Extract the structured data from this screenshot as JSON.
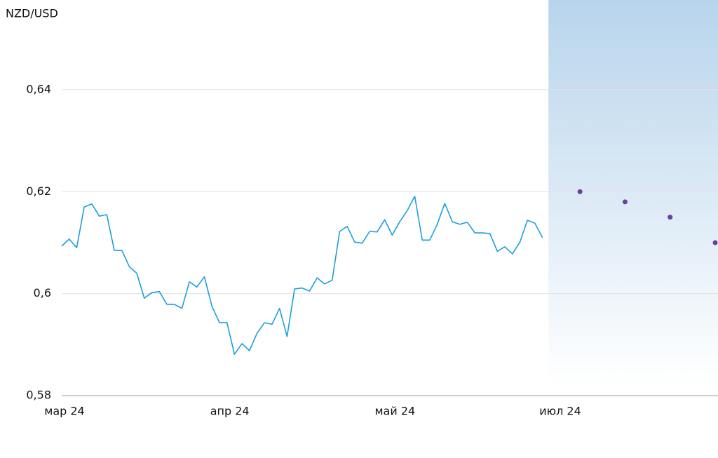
{
  "chart_data": {
    "type": "line",
    "title": "NZD/USD",
    "categories": [
      "мар 24",
      null,
      null,
      null,
      null,
      null,
      null,
      null,
      null,
      null,
      null,
      null,
      null,
      null,
      null,
      null,
      null,
      null,
      null,
      null,
      null,
      null,
      "апр 24",
      null,
      null,
      null,
      null,
      null,
      null,
      null,
      null,
      null,
      null,
      null,
      null,
      null,
      null,
      null,
      null,
      null,
      null,
      null,
      null,
      null,
      "май 24",
      null,
      null,
      null,
      null,
      null,
      null,
      null,
      null,
      null,
      null,
      null,
      null,
      null,
      null,
      null,
      null,
      null,
      null,
      null,
      null,
      null,
      "июл 24",
      null,
      null,
      null,
      null,
      null,
      null,
      null,
      null,
      null,
      null,
      null,
      null,
      null,
      null,
      null,
      null,
      null,
      null,
      null,
      null,
      null
    ],
    "series": [
      {
        "color": "#1a9fdc",
        "style": "line",
        "values": [
          0.6093,
          0.6107,
          0.609,
          0.617,
          0.6176,
          0.6152,
          0.6155,
          0.6085,
          0.6085,
          0.6053,
          0.604,
          0.5991,
          0.6002,
          0.6004,
          0.5979,
          0.5979,
          0.5971,
          0.6023,
          0.6013,
          0.6033,
          0.5975,
          0.5943,
          0.5943,
          0.5881,
          0.5902,
          0.5888,
          0.5922,
          0.5943,
          0.594,
          0.5971,
          0.5916,
          0.6009,
          0.6011,
          0.6005,
          0.6031,
          0.6019,
          0.6026,
          0.6122,
          0.6132,
          0.6101,
          0.6099,
          0.6122,
          0.6121,
          0.6145,
          0.6115,
          0.6141,
          0.6163,
          0.6191,
          0.6105,
          0.6105,
          0.6136,
          0.6177,
          0.6141,
          0.6136,
          0.614,
          0.6119,
          0.6119,
          0.6118,
          0.6083,
          0.6092,
          0.6078,
          0.6101,
          0.6144,
          0.6138,
          0.611,
          null,
          null,
          null,
          null,
          null,
          null,
          null,
          null,
          null,
          null,
          null,
          null,
          null,
          null,
          null,
          null,
          null,
          null,
          null,
          null,
          null,
          null,
          null
        ]
      },
      {
        "color": "#6a3fa0",
        "style": "points",
        "values": [
          null,
          null,
          null,
          null,
          null,
          null,
          null,
          null,
          null,
          null,
          null,
          null,
          null,
          null,
          null,
          null,
          null,
          null,
          null,
          null,
          null,
          null,
          null,
          null,
          null,
          null,
          null,
          null,
          null,
          null,
          null,
          null,
          null,
          null,
          null,
          null,
          null,
          null,
          null,
          null,
          null,
          null,
          null,
          null,
          null,
          null,
          null,
          null,
          null,
          null,
          null,
          null,
          null,
          null,
          null,
          null,
          null,
          null,
          null,
          null,
          null,
          null,
          null,
          null,
          null,
          null,
          null,
          null,
          null,
          0.62,
          null,
          null,
          null,
          null,
          null,
          0.618,
          null,
          null,
          null,
          null,
          null,
          0.615,
          null,
          null,
          null,
          null,
          null,
          0.61
        ]
      }
    ],
    "ylim": [
      0.58,
      0.6576
    ],
    "yticks": [
      {
        "value": 0.58,
        "label": "0,58"
      },
      {
        "value": 0.6,
        "label": "0,6"
      },
      {
        "value": 0.62,
        "label": "0,62"
      },
      {
        "value": 0.64,
        "label": "0,64"
      }
    ],
    "grid": true
  }
}
